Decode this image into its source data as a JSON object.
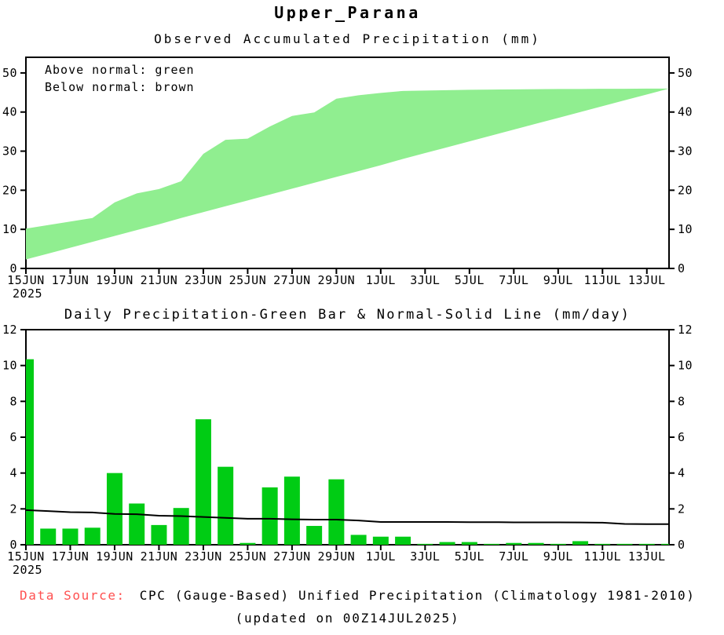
{
  "page": {
    "title": "Upper_Parana",
    "year_label": "2025"
  },
  "colors": {
    "band_green": "#90EE90",
    "bar_green": "#00CC14",
    "normal_line": "#000000",
    "frame": "#000000",
    "source_label_red": "#FF5050"
  },
  "footer": {
    "source_label": "Data Source:",
    "source_text": "CPC (Gauge-Based) Unified Precipitation (Climatology 1981-2010)",
    "updated_text": "(updated on 00Z14JUL2025)"
  },
  "chart_data": [
    {
      "type": "area",
      "title": "Observed Accumulated Precipitation (mm)",
      "legend": [
        "Above normal: green",
        "Below normal: brown"
      ],
      "xlabel": "",
      "ylabel": "",
      "ylim": [
        0,
        54
      ],
      "yticks": [
        0,
        10,
        20,
        30,
        40,
        50
      ],
      "grid": false,
      "legend_position": "top-left-inside",
      "x": [
        "15JUN",
        "16JUN",
        "17JUN",
        "18JUN",
        "19JUN",
        "20JUN",
        "21JUN",
        "22JUN",
        "23JUN",
        "24JUN",
        "25JUN",
        "26JUN",
        "27JUN",
        "28JUN",
        "29JUN",
        "30JUN",
        "1JUL",
        "2JUL",
        "3JUL",
        "4JUL",
        "5JUL",
        "6JUL",
        "7JUL",
        "8JUL",
        "9JUL",
        "10JUL",
        "11JUL",
        "12JUL",
        "13JUL",
        "14JUL"
      ],
      "x_tick_labels": [
        "15JUN",
        "17JUN",
        "19JUN",
        "21JUN",
        "23JUN",
        "25JUN",
        "27JUN",
        "29JUN",
        "1JUL",
        "3JUL",
        "5JUL",
        "7JUL",
        "9JUL",
        "11JUL",
        "13JUL"
      ],
      "series": [
        {
          "name": "observed_accumulated_mm",
          "values": [
            10.2,
            11.1,
            12.0,
            12.9,
            16.9,
            19.2,
            20.3,
            22.3,
            29.3,
            32.9,
            33.2,
            36.3,
            39.0,
            39.9,
            43.4,
            44.3,
            44.9,
            45.4,
            45.5,
            45.6,
            45.7,
            45.75,
            45.8,
            45.85,
            45.9,
            45.9,
            45.95,
            45.95,
            46.0,
            46.0
          ]
        },
        {
          "name": "normal_accumulated_mm",
          "values": [
            2.3,
            3.8,
            5.3,
            6.8,
            8.3,
            9.8,
            11.3,
            12.9,
            14.4,
            15.9,
            17.4,
            18.9,
            20.4,
            21.9,
            23.4,
            24.9,
            26.4,
            28.0,
            29.5,
            31.0,
            32.5,
            34.0,
            35.5,
            37.0,
            38.5,
            40.0,
            41.5,
            43.0,
            44.5,
            46.0
          ]
        }
      ],
      "fill_between_note": "green fill where observed is above normal"
    },
    {
      "type": "bar",
      "title": "Daily Precipitation-Green Bar & Normal-Solid Line (mm/day)",
      "xlabel": "",
      "ylabel": "",
      "ylim": [
        0,
        12
      ],
      "yticks": [
        0,
        2,
        4,
        6,
        8,
        10,
        12
      ],
      "grid": false,
      "x": [
        "15JUN",
        "16JUN",
        "17JUN",
        "18JUN",
        "19JUN",
        "20JUN",
        "21JUN",
        "22JUN",
        "23JUN",
        "24JUN",
        "25JUN",
        "26JUN",
        "27JUN",
        "28JUN",
        "29JUN",
        "30JUN",
        "1JUL",
        "2JUL",
        "3JUL",
        "4JUL",
        "5JUL",
        "6JUL",
        "7JUL",
        "8JUL",
        "9JUL",
        "10JUL",
        "11JUL",
        "12JUL",
        "13JUL",
        "14JUL"
      ],
      "x_tick_labels": [
        "15JUN",
        "17JUN",
        "19JUN",
        "21JUN",
        "23JUN",
        "25JUN",
        "27JUN",
        "29JUN",
        "1JUL",
        "3JUL",
        "5JUL",
        "7JUL",
        "9JUL",
        "11JUL",
        "13JUL"
      ],
      "series": [
        {
          "name": "daily_precipitation_mm",
          "type": "bar",
          "values": [
            10.35,
            0.9,
            0.9,
            0.95,
            4.0,
            2.3,
            1.1,
            2.05,
            7.0,
            4.35,
            0.1,
            3.2,
            3.8,
            1.05,
            3.65,
            0.55,
            0.45,
            0.45,
            0.05,
            0.15,
            0.15,
            0.05,
            0.1,
            0.1,
            0.05,
            0.2,
            0.05,
            0.05,
            0.05,
            0.05
          ]
        },
        {
          "name": "normal_mm_per_day",
          "type": "line",
          "values": [
            1.93,
            1.88,
            1.82,
            1.8,
            1.72,
            1.7,
            1.62,
            1.6,
            1.55,
            1.5,
            1.45,
            1.45,
            1.42,
            1.4,
            1.4,
            1.35,
            1.27,
            1.27,
            1.27,
            1.27,
            1.26,
            1.26,
            1.25,
            1.25,
            1.25,
            1.24,
            1.23,
            1.16,
            1.15,
            1.15
          ]
        }
      ]
    }
  ]
}
